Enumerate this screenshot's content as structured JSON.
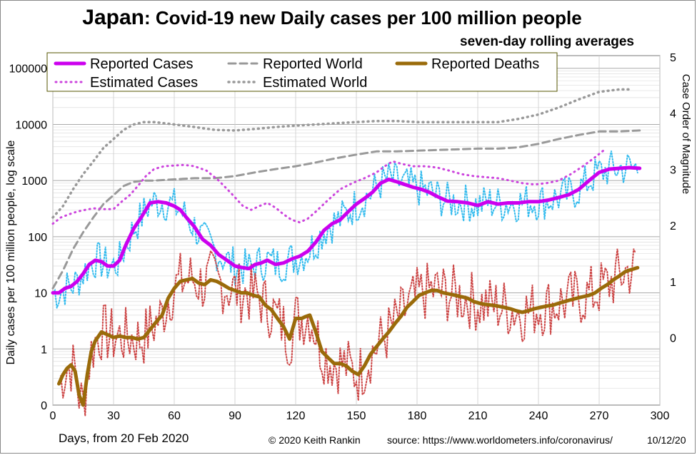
{
  "title_country": "Japan",
  "title_rest": ": Covid-19 new Daily cases per 100 million people",
  "subtitle": "seven-day rolling averages",
  "xlabel": "Days, from 20 Feb 2020",
  "copyright": "© 2020  Keith Rankin",
  "source": "source:  https://www.worldometers.info/coronavirus/",
  "date": "10/12/20",
  "colors": {
    "reported_cases": "#cc00ee",
    "estimated_cases": "#cc44dd",
    "reported_world": "#999999",
    "estimated_world": "#999999",
    "reported_deaths": "#9a6b0a",
    "daily_cases_raw": "#33bbee",
    "daily_deaths_raw": "#cc4444",
    "grid": "#cccccc"
  },
  "chart_data": {
    "type": "line",
    "title": "Japan: Covid-19 new Daily cases per 100 million people",
    "subtitle": "seven-day rolling averages",
    "xlabel": "Days, from 20 Feb 2020",
    "ylabel": "Daily cases per 100 million people, log scale",
    "y2label": "Case Order of Magnitude",
    "xlim": [
      0,
      300
    ],
    "ylim": [
      0,
      100000
    ],
    "yscale": "log",
    "x_ticks": [
      0,
      30,
      60,
      90,
      120,
      150,
      180,
      210,
      240,
      270,
      300
    ],
    "y_ticks": [
      "0",
      "1",
      "10",
      "100",
      "1000",
      "10000",
      "100000"
    ],
    "y2_ticks": [
      "0",
      "1",
      "2",
      "3",
      "4",
      "5"
    ],
    "grid": true,
    "legend_position": "top-left",
    "legend": [
      "Reported Cases",
      "Reported World",
      "Reported Deaths",
      "Estimated Cases",
      "Estimated World"
    ],
    "series": [
      {
        "name": "Reported Cases",
        "style": "solid",
        "x": [
          0,
          3,
          6,
          9,
          12,
          15,
          18,
          21,
          24,
          27,
          30,
          33,
          36,
          40,
          44,
          48,
          52,
          56,
          60,
          63,
          66,
          70,
          74,
          78,
          82,
          86,
          90,
          94,
          97,
          100,
          103,
          106,
          110,
          114,
          118,
          122,
          126,
          130,
          134,
          138,
          142,
          146,
          150,
          154,
          158,
          162,
          166,
          170,
          174,
          178,
          182,
          186,
          190,
          195,
          200,
          205,
          210,
          215,
          220,
          225,
          230,
          235,
          240,
          245,
          250,
          255,
          260,
          265,
          270,
          275,
          280,
          285,
          290
        ],
        "y": [
          10,
          10,
          12,
          13,
          16,
          22,
          32,
          38,
          36,
          30,
          30,
          38,
          70,
          140,
          230,
          400,
          420,
          400,
          350,
          300,
          220,
          150,
          90,
          70,
          48,
          38,
          30,
          28,
          27,
          32,
          34,
          38,
          32,
          34,
          40,
          45,
          55,
          80,
          130,
          170,
          200,
          280,
          380,
          480,
          620,
          900,
          1050,
          950,
          850,
          760,
          700,
          620,
          520,
          430,
          420,
          400,
          360,
          420,
          380,
          400,
          400,
          420,
          420,
          450,
          500,
          560,
          700,
          1000,
          1400,
          1600,
          1650,
          1700,
          1650
        ]
      },
      {
        "name": "Estimated Cases",
        "style": "dotted",
        "x": [
          0,
          4,
          8,
          12,
          16,
          20,
          25,
          30,
          34,
          38,
          42,
          46,
          50,
          55,
          60,
          65,
          70,
          76,
          82,
          88,
          94,
          98,
          102,
          106,
          110,
          114,
          118,
          122,
          126,
          130,
          136,
          142,
          148,
          154,
          160,
          164,
          168,
          172,
          178,
          184,
          190,
          196,
          202,
          208,
          214,
          220,
          226,
          232,
          238,
          244,
          250,
          256,
          262,
          268,
          272
        ],
        "y": [
          170,
          220,
          250,
          280,
          300,
          320,
          310,
          310,
          420,
          550,
          800,
          1200,
          1600,
          1800,
          1850,
          1900,
          1800,
          1500,
          1000,
          600,
          350,
          300,
          350,
          400,
          330,
          250,
          200,
          180,
          210,
          280,
          450,
          700,
          900,
          1100,
          1400,
          1800,
          2200,
          2000,
          1800,
          1800,
          1700,
          1500,
          1300,
          1200,
          1150,
          1100,
          1000,
          900,
          850,
          900,
          1000,
          1300,
          1800,
          2600,
          3400
        ]
      },
      {
        "name": "Reported World",
        "style": "dashed",
        "x": [
          0,
          5,
          10,
          15,
          20,
          25,
          30,
          35,
          40,
          45,
          50,
          60,
          70,
          80,
          90,
          100,
          110,
          120,
          130,
          140,
          150,
          160,
          170,
          180,
          190,
          200,
          210,
          220,
          230,
          240,
          250,
          260,
          270,
          280,
          290
        ],
        "y": [
          12,
          25,
          60,
          120,
          220,
          380,
          550,
          800,
          950,
          1000,
          1000,
          1050,
          1100,
          1100,
          1200,
          1400,
          1600,
          1800,
          2100,
          2500,
          2900,
          3300,
          3300,
          3400,
          3500,
          3600,
          3700,
          3700,
          3900,
          4500,
          5500,
          6500,
          7500,
          7500,
          7800
        ]
      },
      {
        "name": "Estimated World",
        "style": "dotted",
        "x": [
          0,
          5,
          10,
          15,
          20,
          25,
          30,
          35,
          40,
          45,
          50,
          55,
          60,
          70,
          80,
          90,
          100,
          110,
          120,
          130,
          140,
          150,
          160,
          170,
          180,
          190,
          200,
          210,
          220,
          230,
          240,
          250,
          260,
          270,
          280,
          285
        ],
        "y": [
          220,
          350,
          700,
          1300,
          2200,
          3800,
          5500,
          8000,
          10000,
          11000,
          11000,
          10500,
          10000,
          9000,
          8000,
          7800,
          8300,
          9000,
          9500,
          10000,
          10500,
          11000,
          11500,
          11500,
          11000,
          11000,
          11000,
          11000,
          11000,
          12500,
          15000,
          20000,
          28000,
          38000,
          42000,
          42000
        ]
      },
      {
        "name": "Reported Deaths",
        "style": "solid",
        "x": [
          3,
          5,
          7,
          9,
          11,
          13,
          15,
          17,
          19,
          21,
          24,
          27,
          30,
          33,
          36,
          39,
          42,
          45,
          48,
          51,
          54,
          57,
          60,
          63,
          66,
          69,
          72,
          75,
          78,
          81,
          84,
          87,
          90,
          93,
          96,
          99,
          102,
          105,
          108,
          111,
          114,
          117,
          120,
          123,
          125,
          127,
          130,
          133,
          136,
          139,
          142,
          145,
          148,
          151,
          154,
          157,
          160,
          163,
          166,
          169,
          172,
          175,
          178,
          181,
          184,
          187,
          190,
          193,
          196,
          199,
          202,
          205,
          208,
          211,
          214,
          217,
          220,
          223,
          226,
          229,
          232,
          235,
          238,
          241,
          244,
          247,
          250,
          253,
          256,
          259,
          262,
          265,
          268,
          271,
          274,
          277,
          280,
          283,
          286,
          289
        ],
        "y": [
          0.24,
          0.35,
          0.45,
          0.52,
          0.4,
          0.15,
          0.1,
          0.35,
          0.9,
          1.4,
          2.0,
          1.8,
          1.6,
          1.7,
          1.6,
          1.6,
          1.5,
          1.6,
          2.2,
          3.0,
          4.0,
          8.0,
          12,
          16,
          17,
          18,
          15,
          14,
          17,
          16,
          14,
          12,
          11,
          10,
          10,
          9,
          8.5,
          6,
          5,
          3.5,
          2.5,
          1.5,
          3.5,
          3.5,
          3.8,
          4,
          2,
          0.9,
          0.7,
          0.55,
          0.55,
          0.5,
          0.4,
          0.35,
          0.5,
          0.8,
          1.1,
          1.5,
          2.0,
          2.8,
          3.8,
          5.5,
          7,
          9,
          10,
          11,
          11,
          10,
          9.5,
          9,
          8.5,
          8,
          7,
          6.5,
          6.2,
          6,
          5.8,
          5.5,
          5.2,
          4.8,
          4.5,
          4.8,
          5.2,
          5.5,
          5.8,
          6.0,
          6.5,
          7.0,
          7.5,
          8.0,
          8.5,
          9.0,
          10,
          12,
          14,
          17,
          20,
          24,
          26,
          28
        ]
      }
    ]
  }
}
